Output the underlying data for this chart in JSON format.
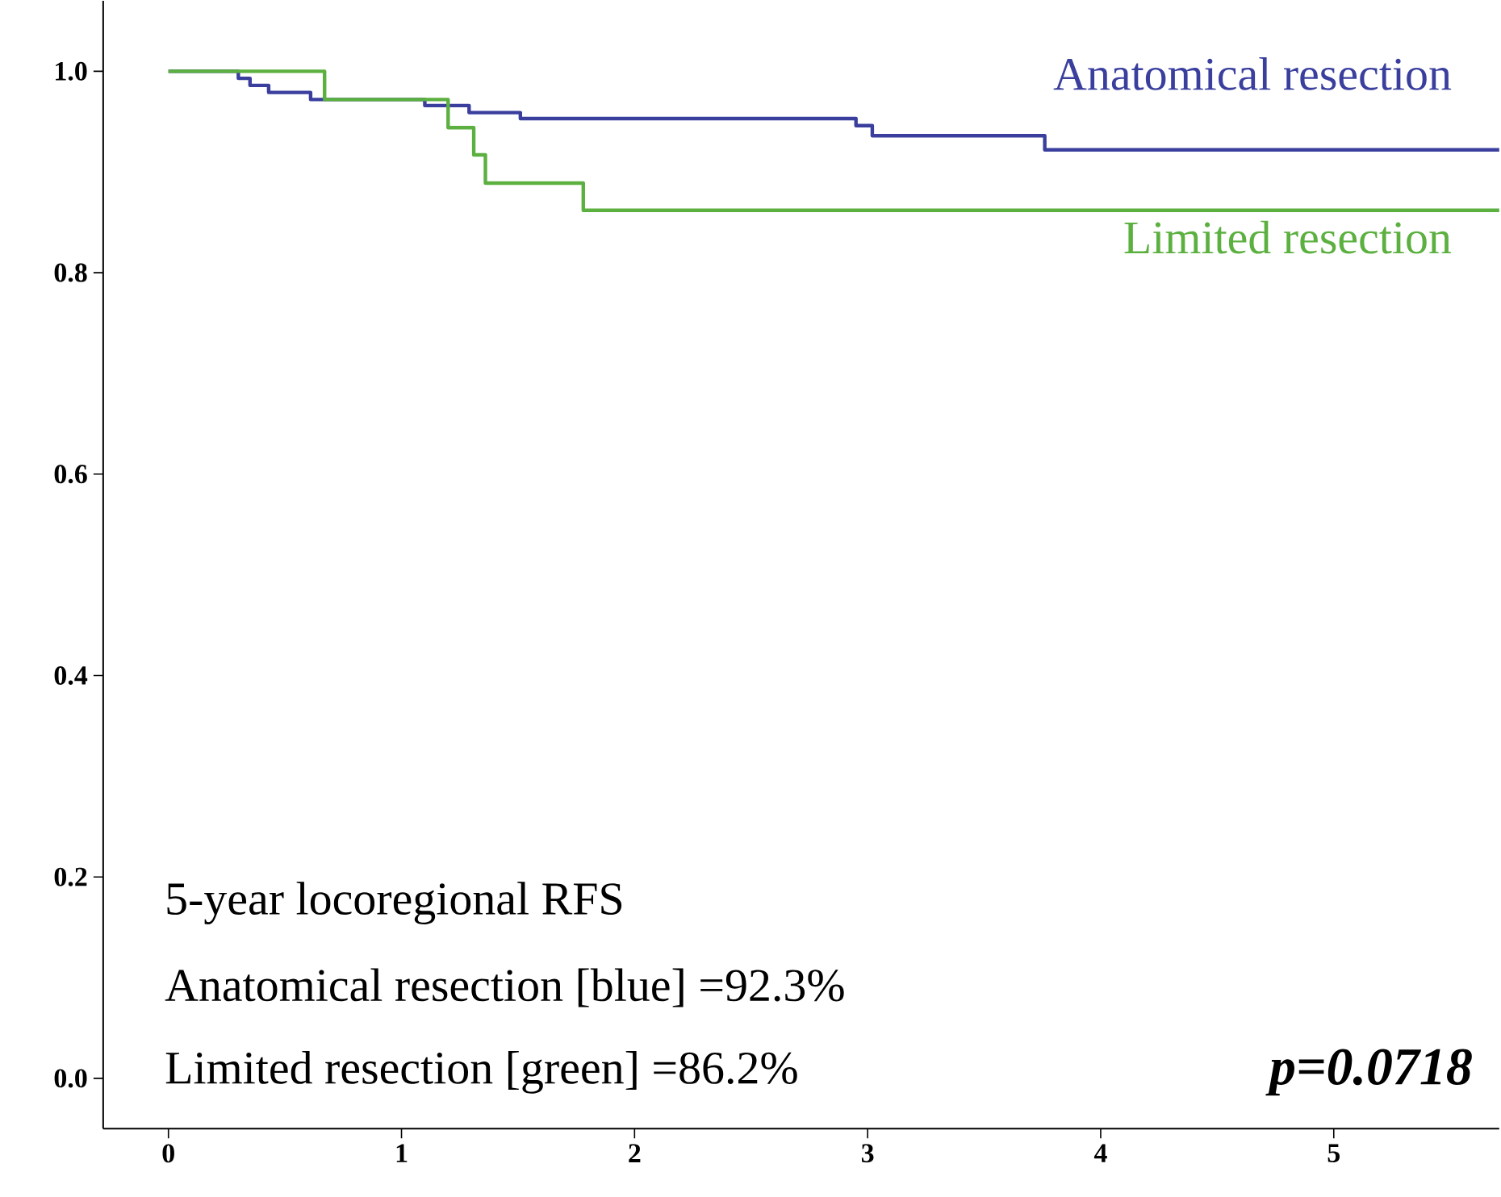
{
  "chart_data": {
    "type": "step",
    "xlim": [
      -0.28,
      5.71
    ],
    "ylim": [
      -0.05,
      1.07
    ],
    "xticks": [
      0,
      1,
      2,
      3,
      4,
      5
    ],
    "yticks": [
      {
        "value": 0,
        "label": "0.0"
      },
      {
        "value": 0.2,
        "label": "0.2"
      },
      {
        "value": 0.4,
        "label": "0.4"
      },
      {
        "value": 0.6,
        "label": "0.6"
      },
      {
        "value": 0.8,
        "label": "0.8"
      },
      {
        "value": 1,
        "label": "1.0"
      }
    ],
    "series": [
      {
        "name": "Anatomical resection",
        "color": "#3a3f9e",
        "x": [
          0,
          0.3,
          0.35,
          0.43,
          0.61,
          1.1,
          1.29,
          1.51,
          2.95,
          3.02,
          3.76,
          5.71
        ],
        "values": [
          1.0,
          0.993,
          0.986,
          0.979,
          0.972,
          0.966,
          0.959,
          0.953,
          0.946,
          0.936,
          0.922,
          0.922
        ]
      },
      {
        "name": "Limited resection",
        "color": "#5cb040",
        "x": [
          0,
          0.67,
          1.2,
          1.31,
          1.36,
          1.78,
          5.71
        ],
        "values": [
          1.0,
          0.972,
          0.944,
          0.917,
          0.889,
          0.862,
          0.862
        ]
      }
    ],
    "annotations": [
      "5-year locoregional RFS",
      "Anatomical resection [blue] =92.3%",
      "Limited resection [green] =86.2%",
      "p=0.0718"
    ],
    "line_style": "solid",
    "marker": "none"
  }
}
